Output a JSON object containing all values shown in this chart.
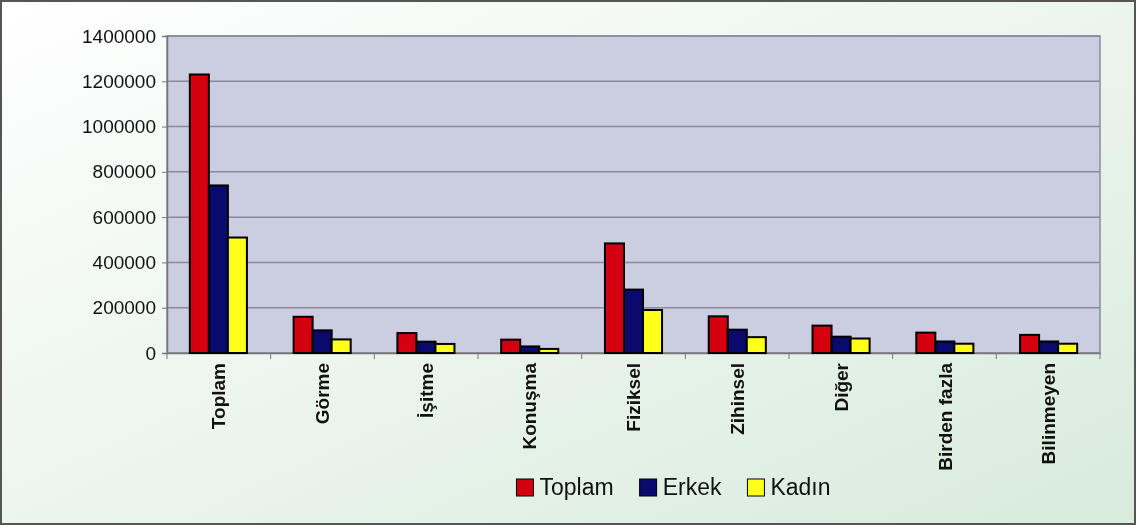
{
  "chart_data": {
    "type": "bar",
    "categories": [
      "Toplam",
      "Görme",
      "İşitme",
      "Konuşma",
      "Fiziksel",
      "Zihinsel",
      "Diğer",
      "Birden fazla",
      "Bilinmeyen"
    ],
    "series": [
      {
        "name": "Toplam",
        "color": "#d40010",
        "values": [
          1230000,
          160000,
          88000,
          59000,
          484000,
          162000,
          121000,
          90000,
          80000
        ]
      },
      {
        "name": "Erkek",
        "color": "#0a0a6e",
        "values": [
          740000,
          100000,
          50000,
          29000,
          280000,
          103000,
          72000,
          51000,
          51000
        ]
      },
      {
        "name": "Kadın",
        "color": "#ffff1a",
        "values": [
          510000,
          60000,
          40000,
          18000,
          190000,
          70000,
          64000,
          41000,
          41000
        ]
      }
    ],
    "ylim": [
      0,
      1400000
    ],
    "yticks": [
      0,
      200000,
      400000,
      600000,
      800000,
      1000000,
      1200000,
      1400000
    ],
    "grid": "y",
    "legend": "bottom"
  }
}
